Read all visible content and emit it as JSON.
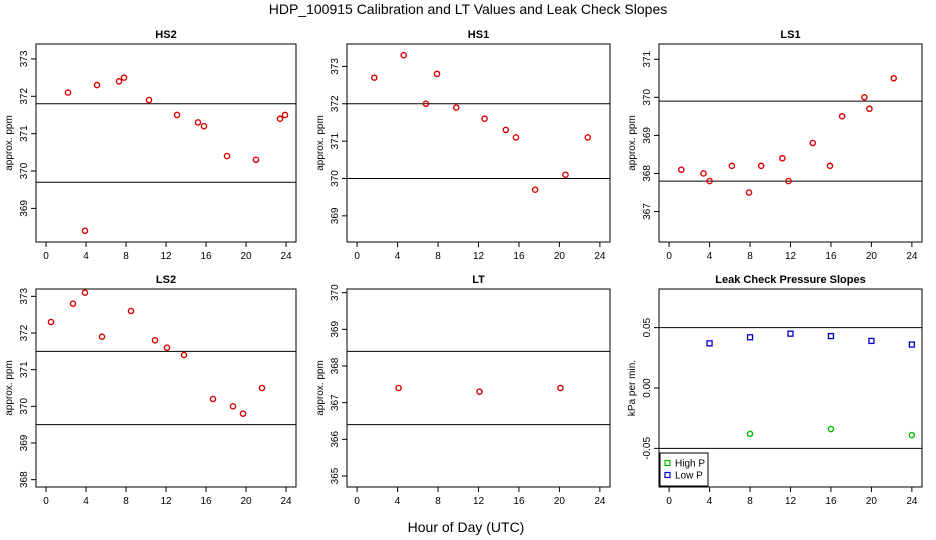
{
  "figure": {
    "title": "HDP_100915  Calibration and LT Values and Leak Check Slopes",
    "xlabel": "Hour of Day (UTC)"
  },
  "chart_data": [
    {
      "type": "scatter",
      "title": "HS2",
      "ylabel": "approx. ppm",
      "xlim": [
        -1,
        25
      ],
      "ylim": [
        368.1,
        373.4
      ],
      "xticks": [
        0,
        4,
        8,
        12,
        16,
        20,
        24
      ],
      "yticks": [
        369,
        370,
        371,
        372,
        373
      ],
      "hlines": [
        371.8,
        369.7
      ],
      "series": [
        {
          "name": "HS2",
          "color": "#dd0000",
          "x": [
            2.2,
            3.9,
            5.1,
            7.3,
            7.8,
            10.3,
            13.1,
            15.2,
            15.8,
            18.1,
            21.0,
            23.4,
            23.9
          ],
          "y": [
            372.1,
            368.4,
            372.3,
            372.4,
            372.5,
            371.9,
            371.5,
            371.3,
            371.2,
            370.4,
            370.3,
            371.4,
            371.5
          ]
        }
      ]
    },
    {
      "type": "scatter",
      "title": "HS1",
      "ylabel": "approx. ppm",
      "xlim": [
        -1,
        25
      ],
      "ylim": [
        368.3,
        373.6
      ],
      "xticks": [
        0,
        4,
        8,
        12,
        16,
        20,
        24
      ],
      "yticks": [
        369,
        370,
        371,
        372,
        373
      ],
      "hlines": [
        372.0,
        370.0
      ],
      "series": [
        {
          "name": "HS1",
          "color": "#dd0000",
          "x": [
            1.7,
            4.6,
            6.8,
            7.9,
            9.8,
            12.6,
            14.7,
            15.7,
            17.6,
            20.6,
            22.8
          ],
          "y": [
            372.7,
            373.3,
            372.0,
            372.8,
            371.9,
            371.6,
            371.3,
            371.1,
            369.7,
            370.1,
            371.1
          ]
        }
      ]
    },
    {
      "type": "scatter",
      "title": "LS1",
      "ylabel": "approx. ppm",
      "xlim": [
        -1,
        25
      ],
      "ylim": [
        366.2,
        371.4
      ],
      "xticks": [
        0,
        4,
        8,
        12,
        16,
        20,
        24
      ],
      "yticks": [
        367,
        368,
        369,
        370,
        371
      ],
      "hlines": [
        369.9,
        367.8
      ],
      "series": [
        {
          "name": "LS1",
          "color": "#dd0000",
          "x": [
            1.2,
            3.4,
            4.0,
            6.2,
            7.9,
            9.1,
            11.2,
            11.8,
            14.2,
            15.9,
            17.1,
            19.3,
            19.8,
            22.2
          ],
          "y": [
            368.1,
            368.0,
            367.8,
            368.2,
            367.5,
            368.2,
            368.4,
            367.8,
            368.8,
            368.2,
            369.5,
            370.0,
            369.7,
            370.5
          ]
        }
      ]
    },
    {
      "type": "scatter",
      "title": "LS2",
      "ylabel": "approx. ppm",
      "xlim": [
        -1,
        25
      ],
      "ylim": [
        367.8,
        373.2
      ],
      "xticks": [
        0,
        4,
        8,
        12,
        16,
        20,
        24
      ],
      "yticks": [
        368,
        369,
        370,
        371,
        372,
        373
      ],
      "hlines": [
        371.5,
        369.5
      ],
      "series": [
        {
          "name": "LS2",
          "color": "#dd0000",
          "x": [
            0.5,
            2.7,
            3.9,
            5.6,
            8.5,
            10.9,
            12.1,
            13.8,
            16.7,
            18.7,
            19.7,
            21.6
          ],
          "y": [
            372.3,
            372.8,
            373.1,
            371.9,
            372.6,
            371.8,
            371.6,
            371.4,
            370.2,
            370.0,
            369.8,
            370.5
          ]
        }
      ]
    },
    {
      "type": "scatter",
      "title": "LT",
      "ylabel": "approx. ppm",
      "xlim": [
        -1,
        25
      ],
      "ylim": [
        364.7,
        370.1
      ],
      "xticks": [
        0,
        4,
        8,
        12,
        16,
        20,
        24
      ],
      "yticks": [
        365,
        366,
        367,
        368,
        369,
        370
      ],
      "hlines": [
        368.4,
        366.4
      ],
      "series": [
        {
          "name": "LT",
          "color": "#dd0000",
          "x": [
            4.1,
            12.1,
            20.1
          ],
          "y": [
            367.4,
            367.3,
            367.4
          ]
        }
      ]
    },
    {
      "type": "scatter",
      "title": "Leak Check Pressure Slopes",
      "ylabel": "kPa per min.",
      "xlim": [
        -1,
        25
      ],
      "ylim": [
        -0.082,
        0.082
      ],
      "xticks": [
        0,
        4,
        8,
        12,
        16,
        20,
        24
      ],
      "yticks": [
        -0.05,
        0.0,
        0.05
      ],
      "ytick_labels": [
        "-0.05",
        "0.00",
        "0.05"
      ],
      "hlines": [
        0.05,
        -0.05
      ],
      "legend": {
        "position": "bottom-left",
        "entries": [
          "High P",
          "Low P"
        ]
      },
      "series": [
        {
          "name": "High P",
          "color": "#00bb00",
          "x": [
            8,
            16,
            24
          ],
          "y": [
            -0.038,
            -0.034,
            -0.039
          ]
        },
        {
          "name": "Low P",
          "color": "#0000cc",
          "x": [
            4,
            8,
            12,
            16,
            20,
            24
          ],
          "y": [
            0.037,
            0.042,
            0.045,
            0.043,
            0.039,
            0.036
          ]
        }
      ]
    }
  ]
}
